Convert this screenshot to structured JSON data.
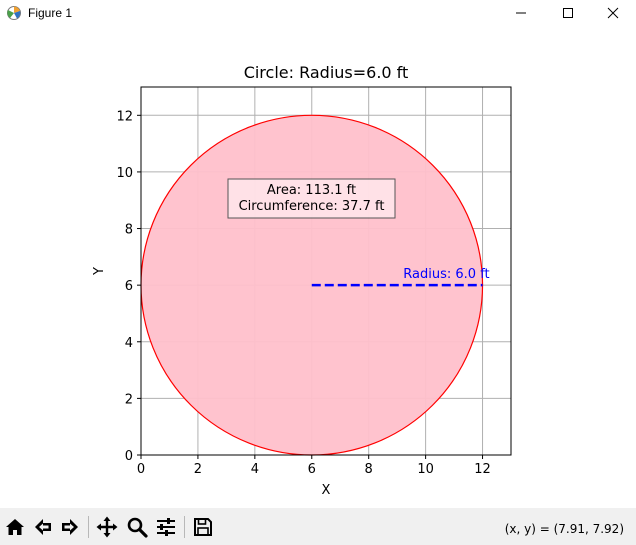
{
  "window": {
    "title": "Figure 1",
    "app_icon": "matplotlib-figure-icon",
    "controls": [
      "minimize-icon",
      "maximize-icon",
      "close-icon"
    ]
  },
  "toolbar": {
    "buttons": [
      "home-icon",
      "back-arrow-icon",
      "forward-arrow-icon",
      "pan-move-icon",
      "zoom-magnifier-icon",
      "configure-subplots-icon",
      "save-floppy-icon"
    ],
    "coordinates": "(x, y) = (7.91, 7.92)"
  },
  "chart_data": {
    "type": "shape",
    "title": "Circle: Radius=6.0 ft",
    "xlabel": "X",
    "ylabel": "Y",
    "xlim": [
      0,
      13
    ],
    "ylim": [
      0,
      13
    ],
    "xticks": [
      0,
      2,
      4,
      6,
      8,
      10,
      12
    ],
    "yticks": [
      0,
      2,
      4,
      6,
      8,
      10,
      12
    ],
    "grid": true,
    "circle": {
      "center": [
        6,
        6
      ],
      "radius": 6,
      "fill": "#ffc0cb",
      "edge": "#ff0000"
    },
    "radius_line": {
      "from": [
        6,
        6
      ],
      "to": [
        12,
        6
      ],
      "color": "#0000ff",
      "style": "dashed"
    },
    "radius_label": "Radius: 6.0 ft",
    "info_box": {
      "lines": [
        "Area: 113.1 ft",
        "Circumference: 37.7 ft"
      ]
    }
  }
}
